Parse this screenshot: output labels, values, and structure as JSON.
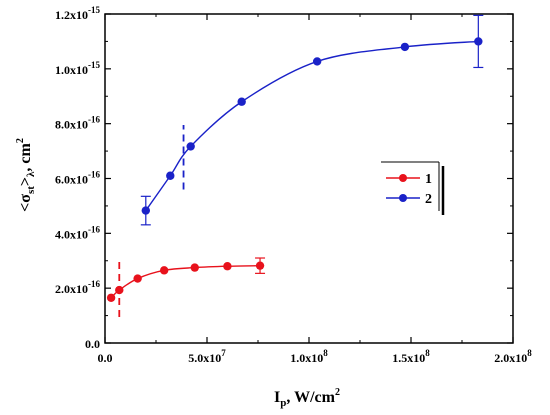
{
  "chart_data": {
    "type": "scatter",
    "xlabel": {
      "main": "I",
      "sub": "p",
      "rest": ", W/cm",
      "sup": "2"
    },
    "ylabel": {
      "open": "<σ",
      "sub1": "st",
      "mid": ">",
      "sub2": "λ",
      "rest": ", cm",
      "sup": "2"
    },
    "xlim": [
      0,
      200000000.0
    ],
    "ylim": [
      0,
      1.2e-15
    ],
    "x_ticks": [
      {
        "value": 0,
        "mant": "0.0",
        "exp": ""
      },
      {
        "value": 50000000.0,
        "mant": "5.0x10",
        "exp": "7"
      },
      {
        "value": 100000000.0,
        "mant": "1.0x10",
        "exp": "8"
      },
      {
        "value": 150000000.0,
        "mant": "1.5x10",
        "exp": "8"
      },
      {
        "value": 200000000.0,
        "mant": "2.0x10",
        "exp": "8"
      }
    ],
    "y_ticks": [
      {
        "value": 0,
        "mant": "0.0",
        "exp": ""
      },
      {
        "value": 2e-16,
        "mant": "2.0x10",
        "exp": "-16"
      },
      {
        "value": 4e-16,
        "mant": "4.0x10",
        "exp": "-16"
      },
      {
        "value": 6e-16,
        "mant": "6.0x10",
        "exp": "-16"
      },
      {
        "value": 8e-16,
        "mant": "8.0x10",
        "exp": "-16"
      },
      {
        "value": 1e-15,
        "mant": "1.0x10",
        "exp": "-15"
      },
      {
        "value": 1.2e-15,
        "mant": "1.2x10",
        "exp": "-15"
      }
    ],
    "legend": {
      "position": "right-middle"
    },
    "series": [
      {
        "name": "1",
        "color": "#e8121c",
        "points": [
          [
            3000000.0,
            1.65e-16
          ],
          [
            7000000.0,
            1.93e-16
          ],
          [
            16000000.0,
            2.35e-16
          ],
          [
            29000000.0,
            2.65e-16
          ],
          [
            44000000.0,
            2.75e-16
          ],
          [
            60000000.0,
            2.8e-16
          ],
          [
            76000000.0,
            2.82e-16
          ]
        ],
        "error_bars": [
          {
            "x": 76000000.0,
            "y": 2.82e-16,
            "err": 2.8e-17
          }
        ],
        "marker_line_x": 7000000.0,
        "marker_line_y": [
          9.5e-17,
          3.1e-16
        ]
      },
      {
        "name": "2",
        "color": "#1a22c8",
        "points": [
          [
            20000000.0,
            4.83e-16
          ],
          [
            32000000.0,
            6.1e-16
          ],
          [
            42000000.0,
            7.17e-16
          ],
          [
            67000000.0,
            8.8e-16
          ],
          [
            104000000.0,
            1.027e-15
          ],
          [
            147000000.0,
            1.08e-15
          ],
          [
            183000000.0,
            1.1e-15
          ]
        ],
        "error_bars": [
          {
            "x": 20000000.0,
            "y": 4.83e-16,
            "err": 5.2e-17
          },
          {
            "x": 183000000.0,
            "y": 1.1e-15,
            "err": 9.5e-17
          }
        ],
        "marker_line_x": 38500000.0,
        "marker_line_y": [
          5.6e-16,
          7.95e-16
        ]
      }
    ]
  }
}
